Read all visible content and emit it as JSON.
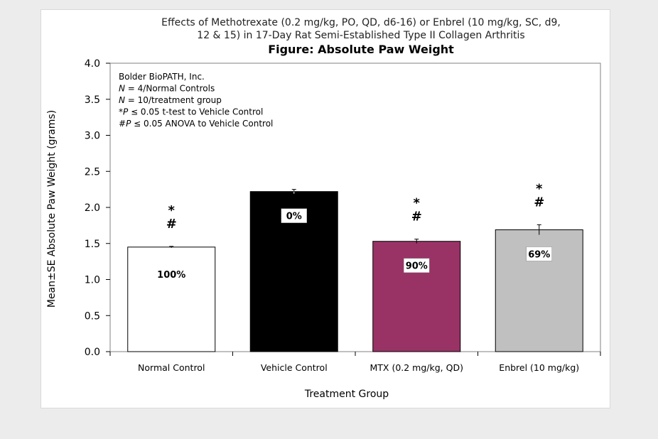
{
  "chart_data": {
    "type": "bar",
    "title_lines": [
      "Effects of Methotrexate (0.2 mg/kg, PO, QD, d6-16) or Enbrel (10 mg/kg, SC, d9,",
      "12 & 15) in 17-Day Rat Semi-Established Type II Collagen Arthritis"
    ],
    "subtitle": "Figure: Absolute Paw Weight",
    "xlabel": "Treatment Group",
    "ylabel": "Mean±SE Absolute Paw Weight (grams)",
    "ylim": [
      0,
      4
    ],
    "yticks": [
      "0.0",
      "0.5",
      "1.0",
      "1.5",
      "2.0",
      "2.5",
      "3.0",
      "3.5",
      "4.0"
    ],
    "categories": [
      "Normal Control",
      "Vehicle Control",
      "MTX (0.2 mg/kg, QD)",
      "Enbrel (10 mg/kg)"
    ],
    "values": [
      1.45,
      2.22,
      1.53,
      1.69
    ],
    "errors": [
      0.01,
      0.03,
      0.03,
      0.07
    ],
    "bar_colors": [
      "#ffffff",
      "#000000",
      "#993366",
      "#c0c0c0"
    ],
    "percent_labels": [
      "100%",
      "0%",
      "90%",
      "69%"
    ],
    "significance_star": [
      "*",
      "",
      "*",
      "*"
    ],
    "significance_hash": [
      "#",
      "",
      "#",
      "#"
    ],
    "annotations": [
      "Bolder BioPATH, Inc.",
      "N = 4/Normal Controls",
      "N = 10/treatment group",
      "*P ≤ 0.05 t-test to Vehicle Control",
      "#P ≤ 0.05 ANOVA to Vehicle Control"
    ],
    "grid": false
  }
}
